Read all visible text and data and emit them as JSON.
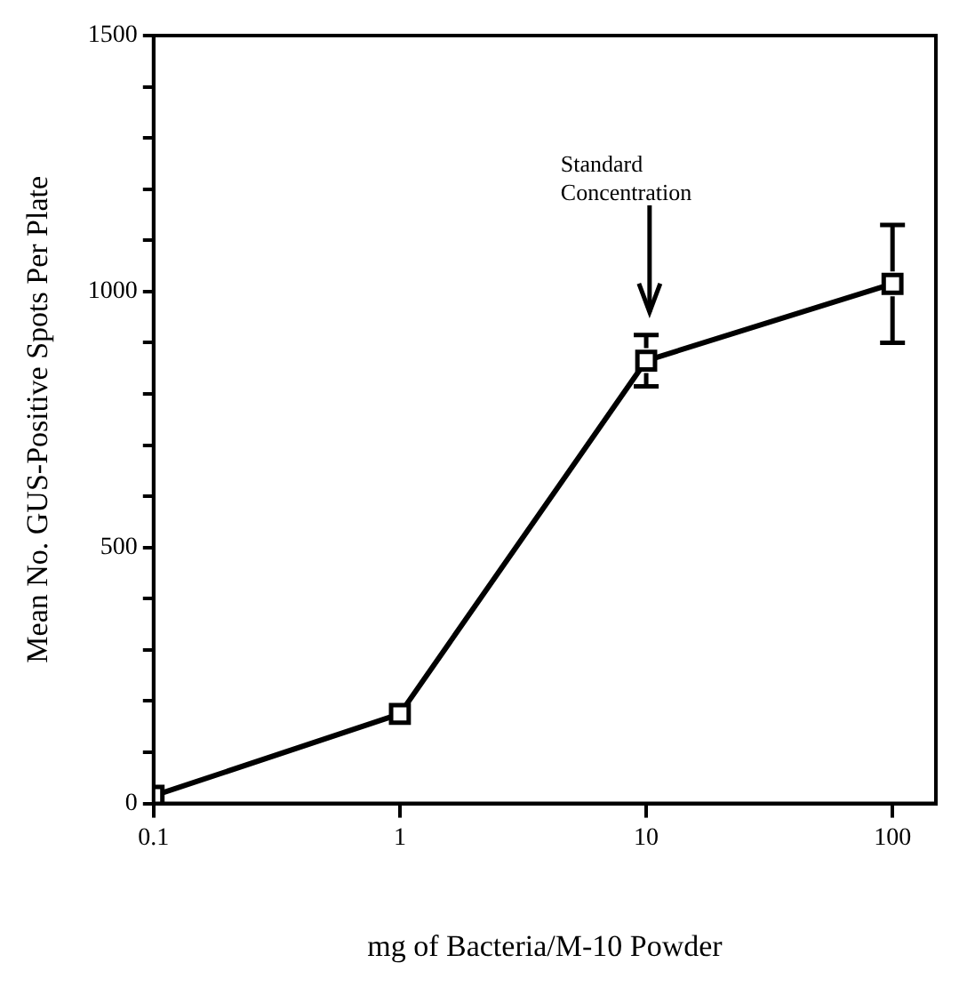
{
  "chart_data": {
    "type": "line",
    "xlabel": "mg of Bacteria/M-10 Powder",
    "ylabel": "Mean No. GUS-Positive Spots Per Plate",
    "x": [
      0.1,
      1,
      10,
      100
    ],
    "series": [
      {
        "color": "#000000",
        "values": [
          15,
          175,
          865,
          1015
        ],
        "errors": [
          null,
          null,
          [
            815,
            915
          ],
          [
            900,
            1130
          ]
        ]
      }
    ],
    "log": "x",
    "xlim": [
      0.1,
      150
    ],
    "xticks": [
      0.1,
      1,
      10,
      100
    ],
    "ylim": [
      0,
      1500
    ],
    "yticks": [
      0,
      {
        "value": 100,
        "label": null
      },
      {
        "value": 200,
        "label": null
      },
      {
        "value": 300,
        "label": null
      },
      {
        "value": 400,
        "label": null
      },
      500,
      {
        "value": 600,
        "label": null
      },
      {
        "value": 700,
        "label": null
      },
      {
        "value": 800,
        "label": null
      },
      {
        "value": 900,
        "label": null
      },
      1000,
      {
        "value": 1100,
        "label": null
      },
      {
        "value": 1200,
        "label": null
      },
      {
        "value": 1300,
        "label": null
      },
      {
        "value": 1400,
        "label": null
      },
      1500
    ],
    "marker": "square",
    "line_style": "solid",
    "grid": false,
    "legend": false,
    "annotations": [
      "Standard Concentration"
    ]
  }
}
